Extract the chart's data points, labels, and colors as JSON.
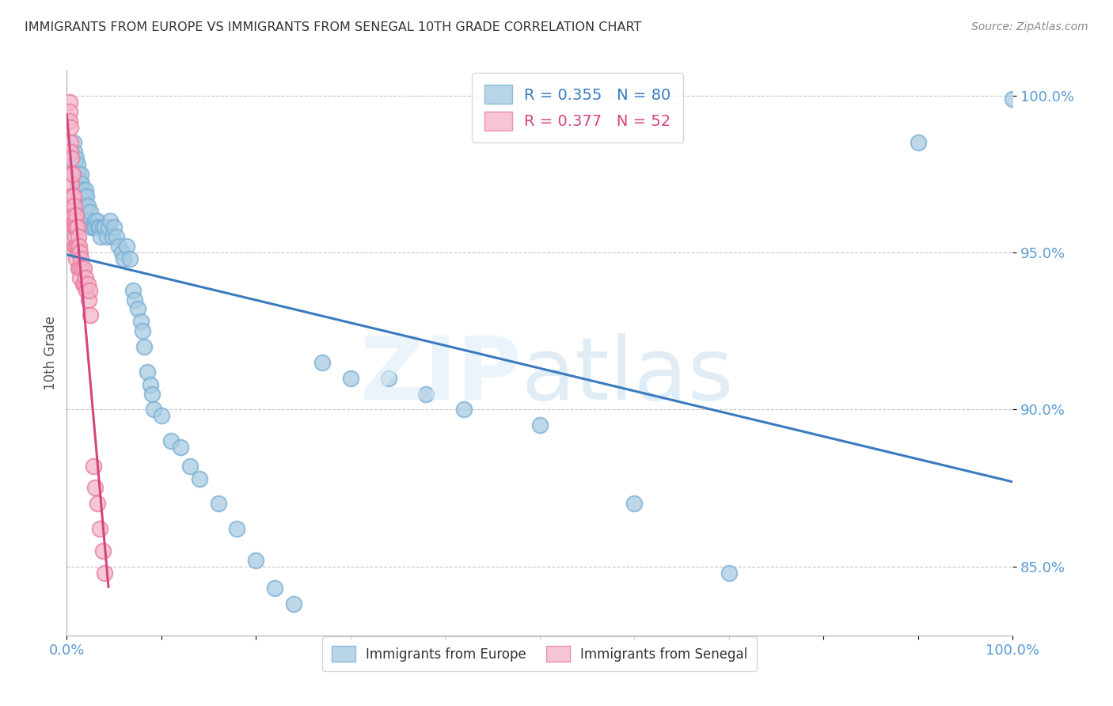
{
  "title": "IMMIGRANTS FROM EUROPE VS IMMIGRANTS FROM SENEGAL 10TH GRADE CORRELATION CHART",
  "source": "Source: ZipAtlas.com",
  "ylabel": "10th Grade",
  "xlim": [
    0.0,
    1.0
  ],
  "ylim": [
    0.828,
    1.008
  ],
  "yticks": [
    0.85,
    0.9,
    0.95,
    1.0
  ],
  "ytick_labels": [
    "85.0%",
    "90.0%",
    "95.0%",
    "100.0%"
  ],
  "xtick_positions": [
    0.0,
    0.1,
    0.2,
    0.3,
    0.4,
    0.5,
    0.6,
    0.7,
    0.8,
    0.9,
    1.0
  ],
  "legend_europe": "Immigrants from Europe",
  "legend_senegal": "Immigrants from Senegal",
  "R_europe": 0.355,
  "N_europe": 80,
  "R_senegal": 0.377,
  "N_senegal": 52,
  "europe_color": "#a8cce4",
  "senegal_color": "#f4b6c8",
  "europe_edge_color": "#7bafd4",
  "senegal_edge_color": "#e87da0",
  "trendline_europe_color": "#3a7bbf",
  "trendline_senegal_color": "#d44480",
  "background_color": "#ffffff",
  "grid_color": "#c8c8c8",
  "axis_label_color": "#5b9bd5",
  "title_color": "#333333",
  "europe_x": [
    0.005,
    0.007,
    0.008,
    0.008,
    0.009,
    0.01,
    0.01,
    0.011,
    0.011,
    0.012,
    0.012,
    0.013,
    0.013,
    0.014,
    0.014,
    0.015,
    0.015,
    0.016,
    0.016,
    0.017,
    0.018,
    0.018,
    0.019,
    0.02,
    0.02,
    0.021,
    0.022,
    0.023,
    0.025,
    0.026,
    0.028,
    0.03,
    0.03,
    0.032,
    0.033,
    0.035,
    0.036,
    0.038,
    0.04,
    0.042,
    0.044,
    0.046,
    0.048,
    0.05,
    0.052,
    0.055,
    0.058,
    0.06,
    0.063,
    0.067,
    0.07,
    0.072,
    0.075,
    0.078,
    0.08,
    0.082,
    0.085,
    0.088,
    0.09,
    0.092,
    0.1,
    0.11,
    0.12,
    0.13,
    0.14,
    0.16,
    0.18,
    0.2,
    0.22,
    0.24,
    0.27,
    0.3,
    0.34,
    0.38,
    0.42,
    0.5,
    0.6,
    0.7,
    0.9,
    1.0
  ],
  "europe_y": [
    0.98,
    0.985,
    0.982,
    0.978,
    0.975,
    0.98,
    0.975,
    0.978,
    0.972,
    0.975,
    0.97,
    0.972,
    0.968,
    0.973,
    0.968,
    0.975,
    0.97,
    0.972,
    0.965,
    0.97,
    0.968,
    0.962,
    0.968,
    0.97,
    0.965,
    0.968,
    0.965,
    0.96,
    0.963,
    0.958,
    0.958,
    0.96,
    0.958,
    0.96,
    0.958,
    0.958,
    0.955,
    0.958,
    0.958,
    0.955,
    0.958,
    0.96,
    0.955,
    0.958,
    0.955,
    0.952,
    0.95,
    0.948,
    0.952,
    0.948,
    0.938,
    0.935,
    0.932,
    0.928,
    0.925,
    0.92,
    0.912,
    0.908,
    0.905,
    0.9,
    0.898,
    0.89,
    0.888,
    0.882,
    0.878,
    0.87,
    0.862,
    0.852,
    0.843,
    0.838,
    0.915,
    0.91,
    0.91,
    0.905,
    0.9,
    0.895,
    0.87,
    0.848,
    0.985,
    0.999
  ],
  "senegal_x": [
    0.003,
    0.003,
    0.003,
    0.004,
    0.004,
    0.004,
    0.005,
    0.005,
    0.005,
    0.005,
    0.005,
    0.006,
    0.006,
    0.006,
    0.007,
    0.007,
    0.007,
    0.008,
    0.008,
    0.008,
    0.009,
    0.009,
    0.01,
    0.01,
    0.01,
    0.01,
    0.011,
    0.011,
    0.012,
    0.012,
    0.012,
    0.013,
    0.013,
    0.014,
    0.014,
    0.015,
    0.016,
    0.017,
    0.018,
    0.019,
    0.02,
    0.021,
    0.022,
    0.023,
    0.024,
    0.025,
    0.028,
    0.03,
    0.032,
    0.035,
    0.038,
    0.04
  ],
  "senegal_y": [
    0.998,
    0.995,
    0.992,
    0.99,
    0.985,
    0.982,
    0.98,
    0.975,
    0.972,
    0.968,
    0.965,
    0.975,
    0.968,
    0.962,
    0.968,
    0.962,
    0.958,
    0.965,
    0.958,
    0.952,
    0.96,
    0.955,
    0.962,
    0.958,
    0.952,
    0.948,
    0.958,
    0.952,
    0.955,
    0.95,
    0.945,
    0.952,
    0.945,
    0.95,
    0.942,
    0.948,
    0.945,
    0.94,
    0.945,
    0.94,
    0.942,
    0.938,
    0.94,
    0.935,
    0.938,
    0.93,
    0.882,
    0.875,
    0.87,
    0.862,
    0.855,
    0.848
  ]
}
